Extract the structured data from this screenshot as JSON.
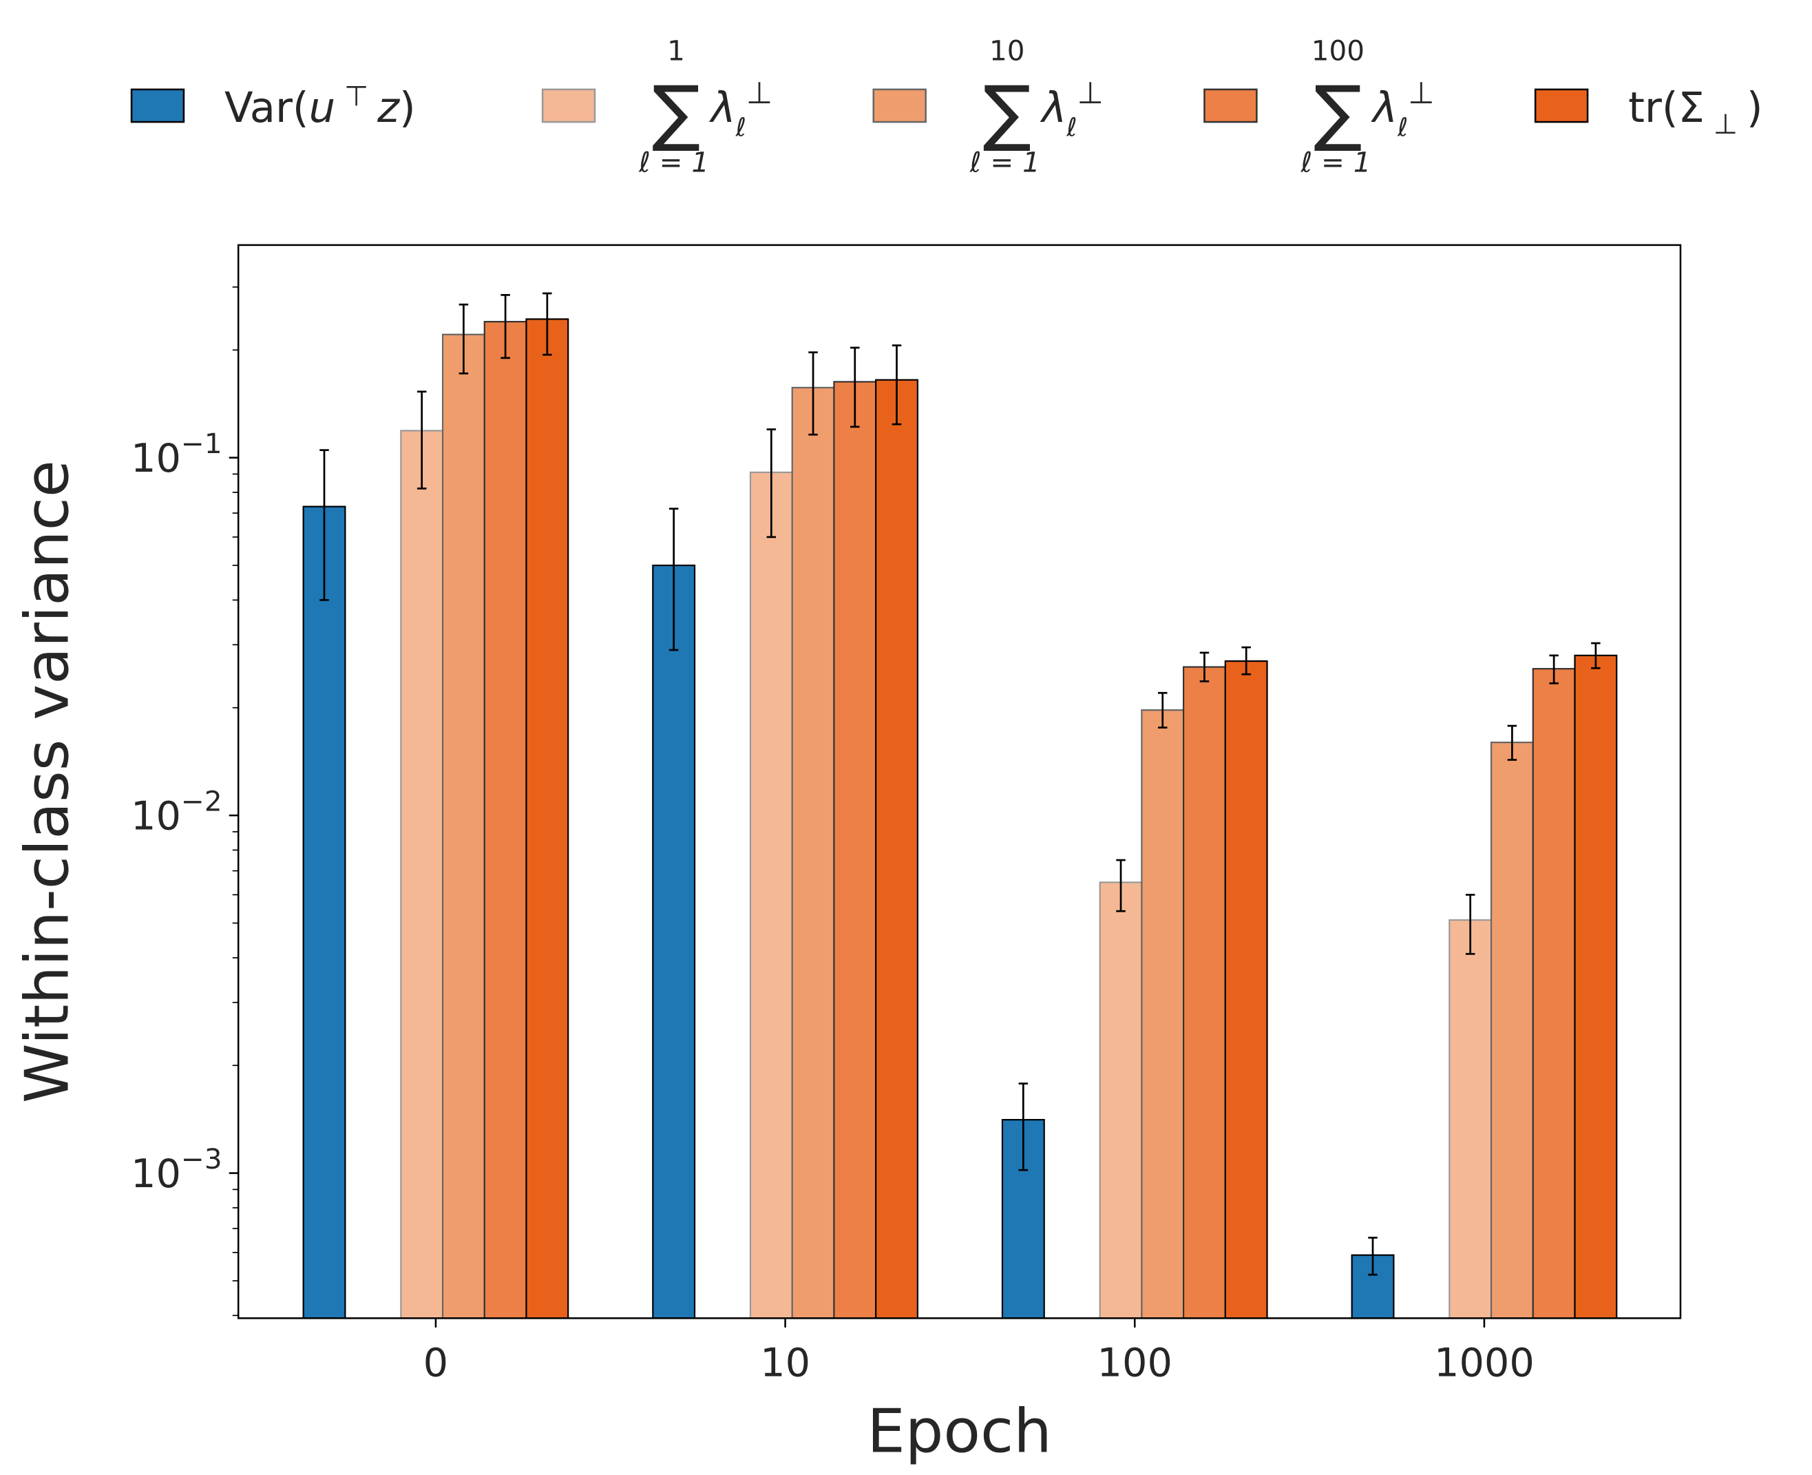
{
  "chart_data": {
    "type": "bar",
    "xlabel": "Epoch",
    "ylabel": "Within-class variance",
    "yscale": "log",
    "ylim": [
      0.000393,
      0.393
    ],
    "yticks": [
      {
        "value": 0.1,
        "label": "10",
        "exp": "−1"
      },
      {
        "value": 0.01,
        "label": "10",
        "exp": "−2"
      },
      {
        "value": 0.001,
        "label": "10",
        "exp": "−3"
      }
    ],
    "categories": [
      "0",
      "10",
      "100",
      "1000"
    ],
    "grid": false,
    "legend_placement": "top",
    "series": [
      {
        "name": "Var(u⊤z)",
        "color": "#1f77b4",
        "edge": "#000000",
        "values": [
          0.073,
          0.05,
          0.00141,
          0.00059
        ],
        "err_low": [
          0.04,
          0.029,
          0.00102,
          0.00052
        ],
        "err_high": [
          0.105,
          0.072,
          0.00178,
          0.00066
        ]
      },
      {
        "name": "Σ_{ℓ=1}^{1} λ_ℓ⊥",
        "sum_upper": "1",
        "color": "#f5b895",
        "edge": "#999999",
        "values": [
          0.119,
          0.091,
          0.0065,
          0.0051
        ],
        "err_low": [
          0.082,
          0.06,
          0.0054,
          0.0041
        ],
        "err_high": [
          0.153,
          0.12,
          0.0075,
          0.006
        ]
      },
      {
        "name": "Σ_{ℓ=1}^{10} λ_ℓ⊥",
        "sum_upper": "10",
        "color": "#f09d6d",
        "edge": "#666666",
        "values": [
          0.221,
          0.157,
          0.0197,
          0.016
        ],
        "err_low": [
          0.172,
          0.116,
          0.0176,
          0.0143
        ],
        "err_high": [
          0.268,
          0.197,
          0.022,
          0.0178
        ]
      },
      {
        "name": "Σ_{ℓ=1}^{100} λ_ℓ⊥",
        "sum_upper": "100",
        "color": "#ed8046",
        "edge": "#333333",
        "values": [
          0.24,
          0.163,
          0.026,
          0.0257
        ],
        "err_low": [
          0.19,
          0.122,
          0.0237,
          0.0234
        ],
        "err_high": [
          0.285,
          0.203,
          0.0285,
          0.028
        ]
      },
      {
        "name": "tr(Σ⊥)",
        "color": "#e8621c",
        "edge": "#000000",
        "values": [
          0.244,
          0.165,
          0.027,
          0.028
        ],
        "err_low": [
          0.194,
          0.124,
          0.0248,
          0.0258
        ],
        "err_high": [
          0.288,
          0.206,
          0.0295,
          0.0303
        ]
      }
    ]
  },
  "legend": {
    "var_text": "Var(",
    "var_u": "u",
    "var_T": "⊤",
    "var_z": "z",
    "var_close": ")",
    "sum_lower": "ℓ = 1",
    "lambda": "λ",
    "ell": "ℓ",
    "perp": "⊥",
    "sigma": "∑",
    "tr_text": "tr(Σ",
    "tr_close": ")"
  }
}
